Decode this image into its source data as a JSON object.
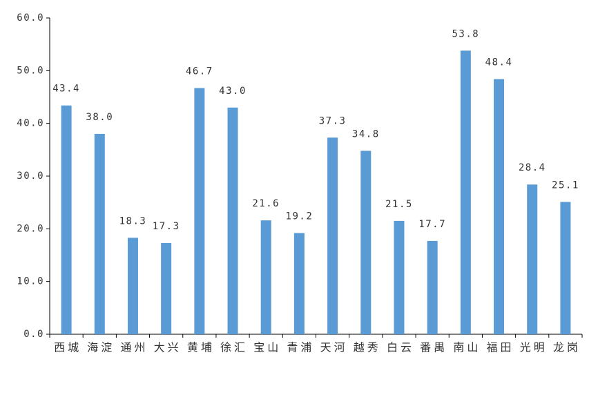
{
  "chart_data": {
    "type": "bar",
    "categories": [
      "西城",
      "海淀",
      "通州",
      "大兴",
      "黄埔",
      "徐汇",
      "宝山",
      "青浦",
      "天河",
      "越秀",
      "白云",
      "番禺",
      "南山",
      "福田",
      "光明",
      "龙岗"
    ],
    "values": [
      43.4,
      38.0,
      18.3,
      17.3,
      46.7,
      43.0,
      21.6,
      19.2,
      37.3,
      34.8,
      21.5,
      17.7,
      53.8,
      48.4,
      28.4,
      25.1
    ],
    "value_labels": [
      "43.4",
      "38.0",
      "18.3",
      "17.3",
      "46.7",
      "43.0",
      "21.6",
      "19.2",
      "37.3",
      "34.8",
      "21.5",
      "17.7",
      "53.8",
      "48.4",
      "28.4",
      "25.1"
    ],
    "color": "#5b9bd5",
    "ylim": [
      0,
      60
    ],
    "yticks": [
      {
        "value": 0,
        "label": "0.0"
      },
      {
        "value": 10,
        "label": "10.0"
      },
      {
        "value": 20,
        "label": "20.0"
      },
      {
        "value": 30,
        "label": "30.0"
      },
      {
        "value": 40,
        "label": "40.0"
      },
      {
        "value": 50,
        "label": "50.0"
      },
      {
        "value": 60,
        "label": "60.0"
      }
    ],
    "grid": false
  }
}
